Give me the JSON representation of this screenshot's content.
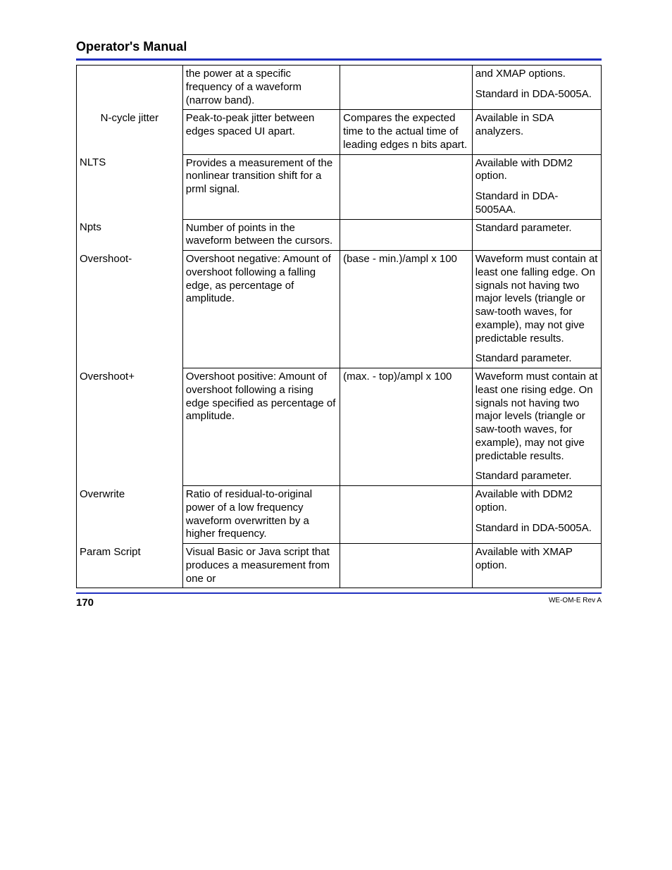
{
  "header": {
    "title": "Operator's Manual"
  },
  "footer": {
    "page_number": "170",
    "doc_rev": "WE-OM-E Rev A"
  },
  "table": {
    "rows": [
      {
        "c0": "",
        "c0_align": "left",
        "c1": "the power at a specific frequency of a waveform (narrow band).",
        "c2": "",
        "c3_parts": [
          "and XMAP options.",
          "Standard in DDA-5005A."
        ]
      },
      {
        "c0": "N-cycle jitter",
        "c0_align": "center",
        "c1": "Peak-to-peak jitter between edges spaced    UI apart.",
        "c2": "Compares the expected time to the actual time of leading edges n bits apart.",
        "c3_parts": [
          "Available in SDA analyzers."
        ]
      },
      {
        "c0": "NLTS",
        "c0_align": "left",
        "c1": "Provides a measurement of the nonlinear transition shift for a prml signal.",
        "c2": "",
        "c3_parts": [
          "Available with DDM2 option.",
          "Standard in DDA-5005AA."
        ]
      },
      {
        "c0": "Npts",
        "c0_align": "left",
        "c1": "Number of points in the waveform between the cursors.",
        "c2": "",
        "c3_parts": [
          "Standard parameter."
        ]
      },
      {
        "c0": "Overshoot-",
        "c0_align": "left",
        "c1": "Overshoot negative: Amount of overshoot following a falling edge, as percentage of amplitude.",
        "c2": "(base - min.)/ampl x 100",
        "c3_parts": [
          "Waveform must contain at least one falling edge. On signals not having two major levels (triangle or saw-tooth waves, for example), may not give predictable results.",
          "Standard parameter."
        ]
      },
      {
        "c0": "Overshoot+",
        "c0_align": "left",
        "c1": "Overshoot positive: Amount of overshoot following a rising edge specified as percentage of amplitude.",
        "c2": "(max. - top)/ampl x 100",
        "c3_parts": [
          "Waveform must contain at least one rising edge. On signals not having two major levels (triangle or saw-tooth waves, for example), may not give predictable results.",
          "Standard parameter."
        ]
      },
      {
        "c0": "Overwrite",
        "c0_align": "left",
        "c1": "Ratio of residual-to-original power of a low frequency waveform overwritten by a higher frequency.",
        "c2": "",
        "c3_parts": [
          "Available with DDM2 option.",
          "Standard in DDA-5005A."
        ]
      },
      {
        "c0": "Param Script",
        "c0_align": "left",
        "c1": "Visual Basic or Java script that produces a measurement from one or",
        "c2": "",
        "c3_parts": [
          "Available with XMAP option."
        ]
      }
    ]
  }
}
